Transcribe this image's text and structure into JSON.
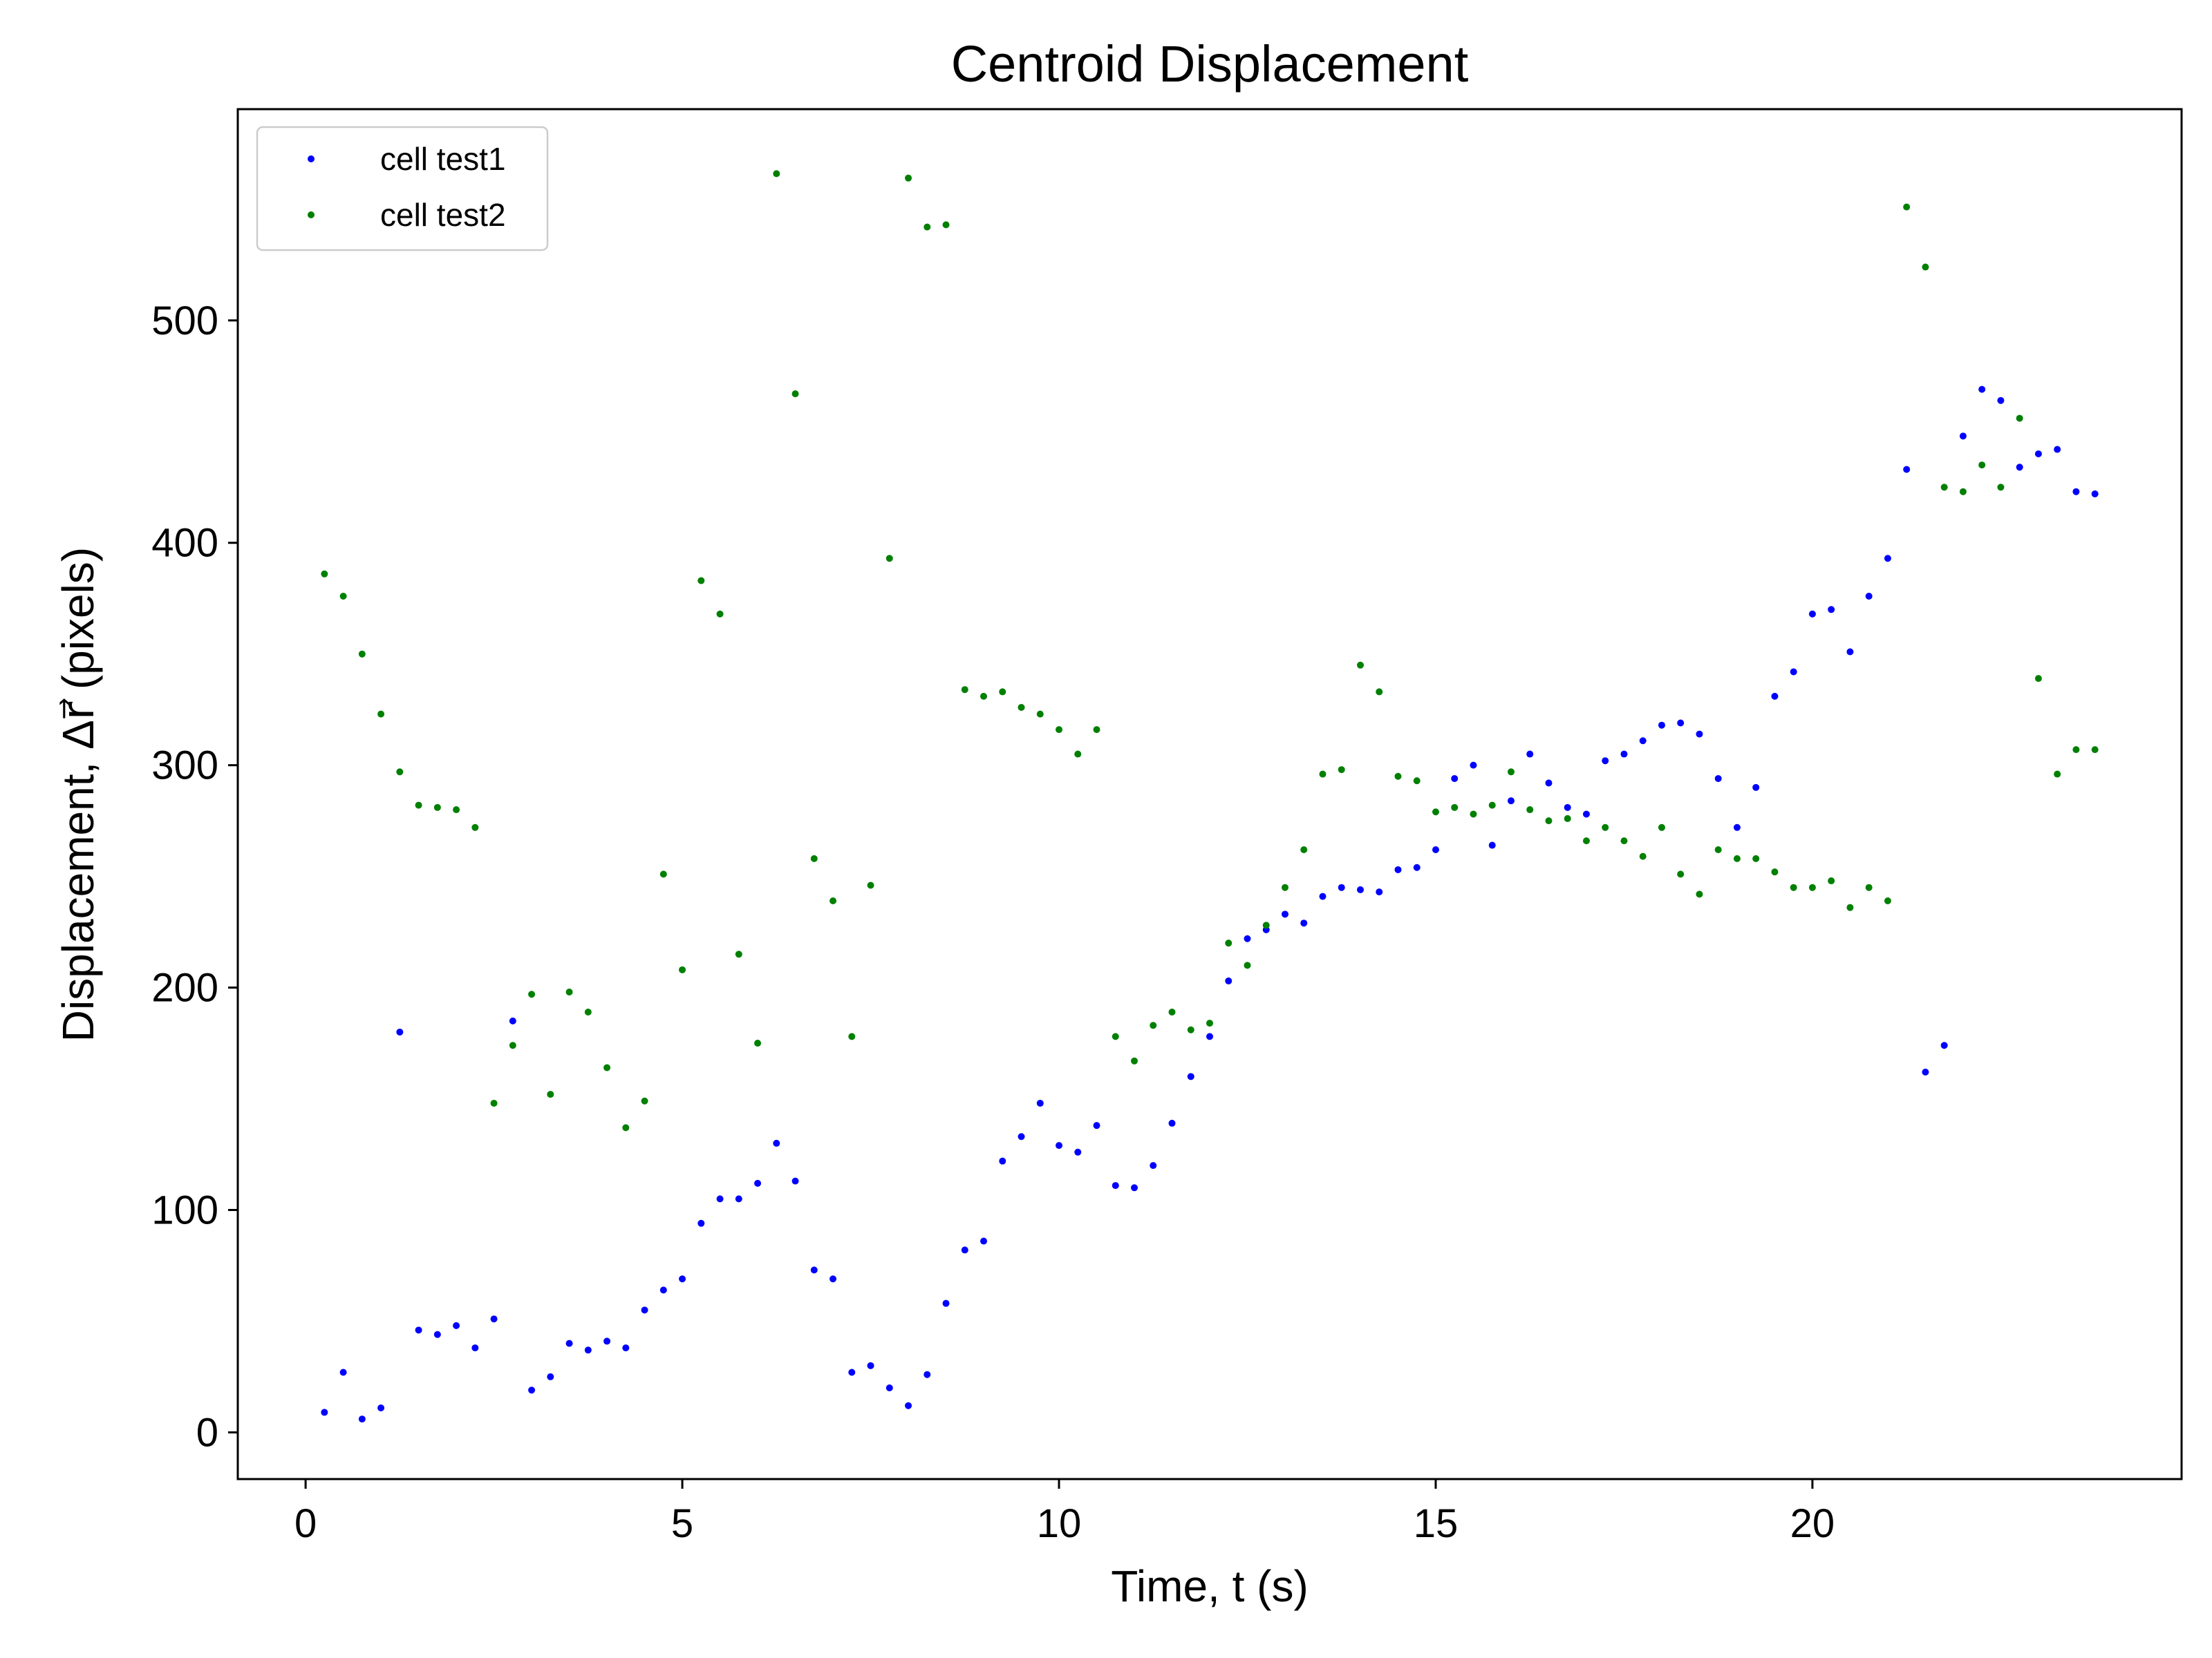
{
  "chart_data": {
    "type": "scatter",
    "title": "Centroid Displacement",
    "xlabel": "Time, t (s)",
    "ylabel": "Displacement, Δr⃗ (pixels)",
    "xlim": [
      -0.9,
      24.9
    ],
    "ylim": [
      -21,
      595
    ],
    "x_ticks": [
      0,
      5,
      10,
      15,
      20
    ],
    "y_ticks": [
      0,
      100,
      200,
      300,
      400,
      500
    ],
    "x_tick_labels": [
      "0",
      "5",
      "10",
      "15",
      "20"
    ],
    "y_tick_labels": [
      "0",
      "100",
      "200",
      "300",
      "400",
      "500"
    ],
    "grid": false,
    "legend_position": "top-left",
    "series": [
      {
        "name": "cell test1",
        "color": "#0000ff",
        "x": [
          0.25,
          0.5,
          0.75,
          1.0,
          1.25,
          1.5,
          1.75,
          2.0,
          2.25,
          2.5,
          2.75,
          3.0,
          3.25,
          3.5,
          3.75,
          4.0,
          4.25,
          4.5,
          4.75,
          5.0,
          5.25,
          5.5,
          5.75,
          6.0,
          6.25,
          6.5,
          6.75,
          7.0,
          7.25,
          7.5,
          7.75,
          8.0,
          8.25,
          8.5,
          8.75,
          9.0,
          9.25,
          9.5,
          9.75,
          10.0,
          10.25,
          10.5,
          10.75,
          11.0,
          11.25,
          11.5,
          11.75,
          12.0,
          12.25,
          12.5,
          12.75,
          13.0,
          13.25,
          13.5,
          13.75,
          14.0,
          14.25,
          14.5,
          14.75,
          15.0,
          15.25,
          15.5,
          15.75,
          16.0,
          16.25,
          16.5,
          16.75,
          17.0,
          17.25,
          17.5,
          17.75,
          18.0,
          18.25,
          18.5,
          18.75,
          19.0,
          19.25,
          19.5,
          19.75,
          20.0,
          20.25,
          20.5,
          20.75,
          21.0,
          21.25,
          21.5,
          21.75,
          22.0,
          22.25,
          22.5,
          22.75,
          23.0,
          23.25,
          23.5,
          23.75
        ],
        "y": [
          9,
          27,
          6,
          11,
          180,
          46,
          44,
          48,
          38,
          51,
          185,
          19,
          25,
          40,
          37,
          41,
          38,
          55,
          64,
          69,
          94,
          105,
          105,
          112,
          130,
          113,
          73,
          69,
          27,
          30,
          20,
          12,
          26,
          58,
          82,
          86,
          122,
          133,
          148,
          129,
          126,
          138,
          111,
          110,
          120,
          139,
          160,
          178,
          203,
          222,
          226,
          233,
          229,
          241,
          245,
          244,
          243,
          253,
          254,
          262,
          294,
          300,
          264,
          284,
          305,
          292,
          281,
          278,
          302,
          305,
          311,
          318,
          319,
          314,
          294,
          272,
          290,
          331,
          342,
          368,
          370,
          351,
          376,
          393,
          433,
          162,
          174,
          448,
          469,
          464,
          434,
          440,
          442,
          423,
          422
        ]
      },
      {
        "name": "cell test2",
        "color": "#008000",
        "x": [
          0.25,
          0.5,
          0.75,
          1.0,
          1.25,
          1.5,
          1.75,
          2.0,
          2.25,
          2.5,
          2.75,
          3.0,
          3.25,
          3.5,
          3.75,
          4.0,
          4.25,
          4.5,
          4.75,
          5.0,
          5.25,
          5.5,
          5.75,
          6.0,
          6.25,
          6.5,
          6.75,
          7.0,
          7.25,
          7.5,
          7.75,
          8.0,
          8.25,
          8.5,
          8.75,
          9.0,
          9.25,
          9.5,
          9.75,
          10.0,
          10.25,
          10.5,
          10.75,
          11.0,
          11.25,
          11.5,
          11.75,
          12.0,
          12.25,
          12.5,
          12.75,
          13.0,
          13.25,
          13.5,
          13.75,
          14.0,
          14.25,
          14.5,
          14.75,
          15.0,
          15.25,
          15.5,
          15.75,
          16.0,
          16.25,
          16.5,
          16.75,
          17.0,
          17.25,
          17.5,
          17.75,
          18.0,
          18.25,
          18.5,
          18.75,
          19.0,
          19.25,
          19.5,
          19.75,
          20.0,
          20.25,
          20.5,
          20.75,
          21.0,
          21.25,
          21.5,
          21.75,
          22.0,
          22.25,
          22.5,
          22.75,
          23.0,
          23.25,
          23.5,
          23.75
        ],
        "y": [
          386,
          376,
          350,
          323,
          297,
          282,
          281,
          280,
          272,
          148,
          174,
          197,
          152,
          198,
          189,
          164,
          137,
          149,
          251,
          208,
          383,
          368,
          215,
          175,
          566,
          467,
          258,
          239,
          178,
          246,
          393,
          564,
          542,
          543,
          334,
          331,
          333,
          326,
          323,
          316,
          305,
          316,
          178,
          167,
          183,
          189,
          181,
          184,
          220,
          210,
          228,
          245,
          262,
          296,
          298,
          345,
          333,
          295,
          293,
          279,
          281,
          278,
          282,
          297,
          280,
          275,
          276,
          266,
          272,
          266,
          259,
          272,
          251,
          242,
          262,
          258,
          258,
          252,
          245,
          245,
          248,
          236,
          245,
          239,
          551,
          524,
          425,
          423,
          435,
          425,
          456,
          339,
          296,
          307,
          307
        ]
      }
    ]
  }
}
